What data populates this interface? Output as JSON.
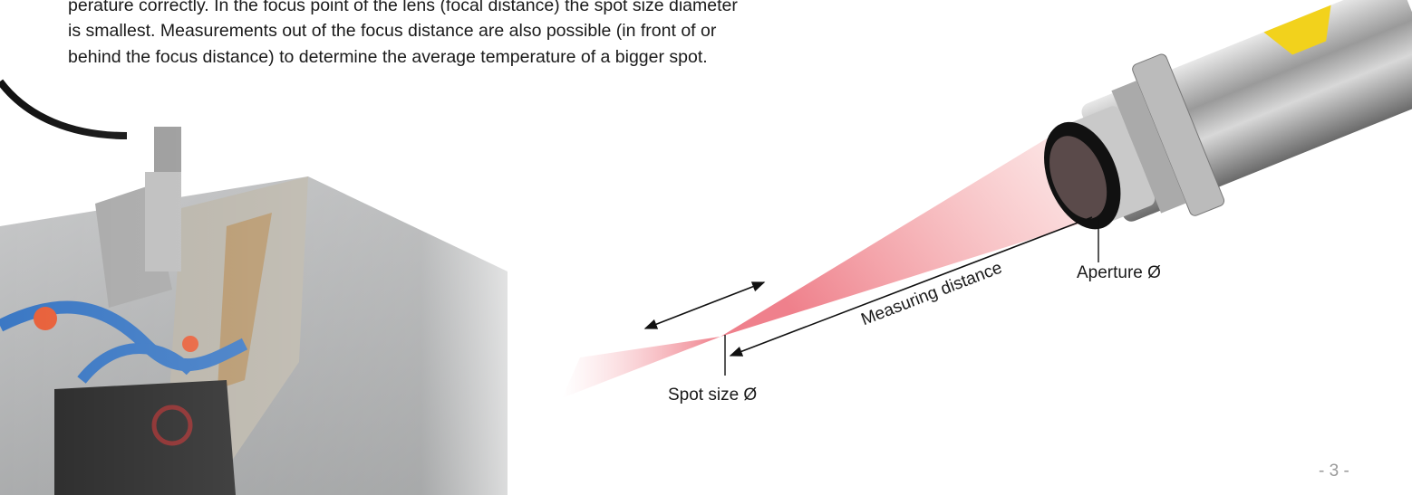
{
  "paragraph": {
    "lines": [
      "perature correctly. In the focus point of the lens (focal distance) the spot size diameter",
      "is smallest. Measurements out of the focus distance are also possible (in front of or",
      "behind the focus distance) to determine the average temperature of a bigger spot."
    ]
  },
  "figure": {
    "labels": {
      "aperture": "Aperture Ø",
      "measuring_distance": "Measuring distance",
      "spot_size": "Spot size Ø"
    }
  },
  "footer": {
    "page_number": "- 3 -"
  }
}
